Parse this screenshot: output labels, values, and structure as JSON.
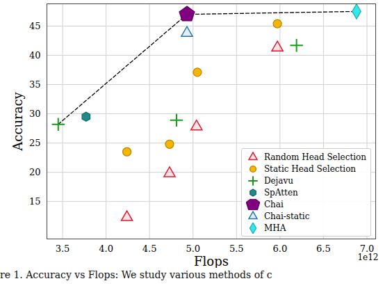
{
  "chart_data": {
    "type": "scatter",
    "x_label": "Flops",
    "y_label": "Accuracy",
    "x_offset_text": "1e12",
    "caption": "re 1. Accuracy vs Flops: We study various methods of c",
    "xlim": [
      3.32,
      7.1
    ],
    "ylim": [
      8.6,
      48.8
    ],
    "xticks": [
      3.5,
      {
        "value": 4,
        "label": "4.0"
      },
      4.5,
      {
        "value": 5,
        "label": "5.0"
      },
      5.5,
      {
        "value": 6,
        "label": "6.0"
      },
      6.5,
      {
        "value": 7,
        "label": "7.0"
      }
    ],
    "yticks": [
      15,
      20,
      25,
      30,
      35,
      40,
      45
    ],
    "grid": true,
    "legend": "lower right",
    "series": [
      {
        "name": "Random Head Selection",
        "color": "#e0182d",
        "marker": "triangle",
        "x": [
          5.97,
          5.04,
          4.73,
          4.24
        ],
        "values": [
          41.3,
          27.8,
          19.8,
          12.3
        ]
      },
      {
        "name": "Static Head Selection",
        "color": "#f7b500",
        "marker": "circle",
        "x": [
          5.97,
          5.05,
          4.73,
          4.24
        ],
        "values": [
          45.4,
          37.1,
          24.8,
          23.5
        ]
      },
      {
        "name": "Dejavu",
        "color": "#1a9a1a",
        "marker": "plus",
        "x": [
          6.19,
          4.81,
          3.45
        ],
        "values": [
          41.7,
          28.9,
          28.2
        ]
      },
      {
        "name": "SpAtten",
        "color": "#1f8a8a",
        "marker": "hexagon",
        "x": [
          3.77
        ],
        "values": [
          29.5
        ]
      },
      {
        "name": "Chai",
        "color": "#800080",
        "marker": "pentagon",
        "x": [
          4.93
        ],
        "values": [
          47.0
        ]
      },
      {
        "name": "Chai-static",
        "color": "#1f77b4",
        "marker": "triangle",
        "x": [
          4.93
        ],
        "values": [
          43.8
        ]
      },
      {
        "name": "MHA",
        "color": "#33e8e8",
        "marker": "diamond",
        "x": [
          6.88
        ],
        "values": [
          47.5
        ]
      }
    ],
    "frontier": {
      "x": [
        3.45,
        4.93,
        6.88
      ],
      "values": [
        28.2,
        47.0,
        47.5
      ],
      "color": "#000000",
      "line_style": "dashed"
    }
  }
}
